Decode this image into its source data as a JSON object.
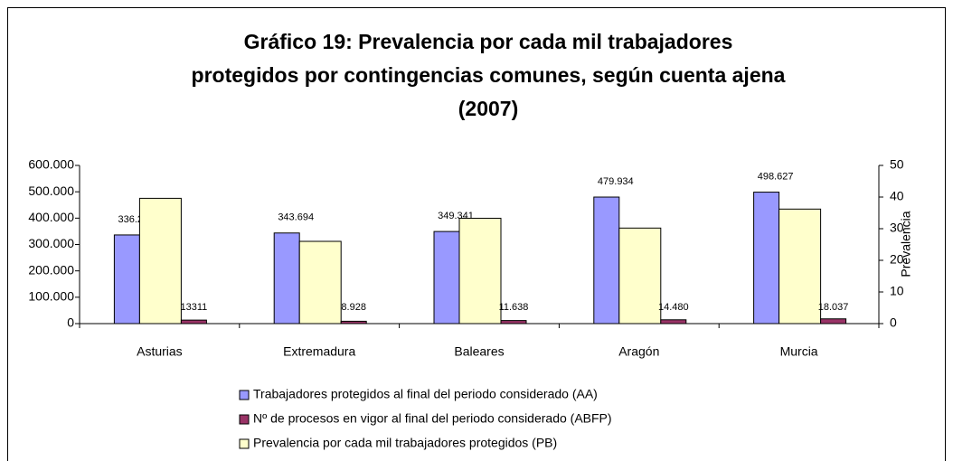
{
  "chart_data": {
    "type": "bar",
    "title": "Gráfico 19: Prevalencia por cada mil trabajadores protegidos por contingencias comunes, según cuenta ajena (2007)",
    "title_lines": [
      "Gráfico 19: Prevalencia por cada mil trabajadores",
      "protegidos por contingencias comunes, según cuenta ajena",
      "(2007)"
    ],
    "y2label": "Prevalencia",
    "categories": [
      "Asturias",
      "Extremadura",
      "Baleares",
      "Aragón",
      "Murcia"
    ],
    "series": [
      {
        "name": "Trabajadores protegidos al final del periodo considerado (AA)",
        "color": "#9999ff",
        "values": [
          336233,
          343694,
          349341,
          479934,
          498627
        ],
        "value_labels": [
          "336.233",
          "343.694",
          "349.341",
          "479.934",
          "498.627"
        ]
      },
      {
        "name": "Nº de procesos en vigor al final del periodo considerado (ABFP)",
        "color": "#993366",
        "values": [
          13311,
          8928,
          11638,
          14480,
          18037
        ],
        "value_labels": [
          "13311",
          "8.928",
          "11.638",
          "14.480",
          "18.037"
        ]
      },
      {
        "name": "Prevalencia por cada mil trabajadores protegidos (PB)",
        "color": "#ffffcc",
        "axis": "y2",
        "values": [
          39.6,
          26.0,
          33.3,
          30.2,
          36.2
        ]
      }
    ],
    "bar_order": [
      0,
      2,
      1
    ],
    "ylim": [
      0,
      600000
    ],
    "yticks": [
      0,
      {
        "value": 100000,
        "label": "100.000"
      },
      {
        "value": 200000,
        "label": "200.000"
      },
      {
        "value": 300000,
        "label": "300.000"
      },
      {
        "value": 400000,
        "label": "400.000"
      },
      {
        "value": 500000,
        "label": "500.000"
      },
      {
        "value": 600000,
        "label": "600.000"
      }
    ],
    "y2lim": [
      0,
      50
    ],
    "y2ticks": [
      0,
      10,
      20,
      30,
      40,
      50
    ],
    "legend": "bottom"
  }
}
